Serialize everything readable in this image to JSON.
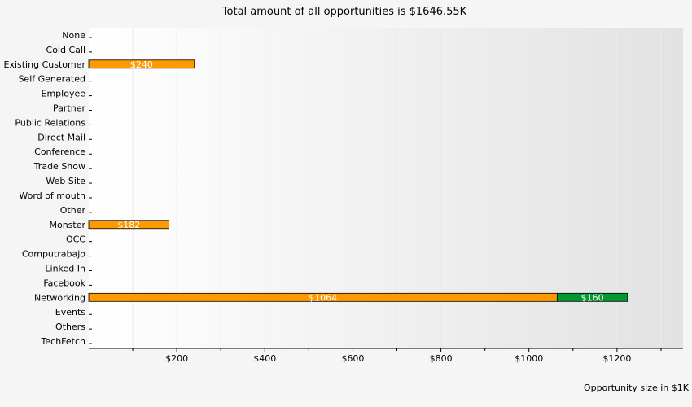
{
  "chart_data": {
    "type": "bar",
    "orientation": "horizontal",
    "stacked": true,
    "title": "Total amount of all opportunities is $1646.55K",
    "xlabel": "Opportunity size in $1K",
    "ylabel": "",
    "categories": [
      "None",
      "Cold Call",
      "Existing Customer",
      "Self Generated",
      "Employee",
      "Partner",
      "Public Relations",
      "Direct Mail",
      "Conference",
      "Trade Show",
      "Web Site",
      "Word of mouth",
      "Other",
      "Monster",
      "OCC",
      "Computrabajo",
      "Linked In",
      "Facebook",
      "Networking",
      "Events",
      "Others",
      "TechFetch"
    ],
    "series": [
      {
        "color": "#ff9900",
        "values": [
          0,
          0,
          240,
          0,
          0,
          0,
          0,
          0,
          0,
          0,
          0,
          0,
          0,
          182,
          0,
          0,
          0,
          0,
          1064,
          0,
          0,
          0
        ],
        "labels": [
          "",
          "",
          "$240",
          "",
          "",
          "",
          "",
          "",
          "",
          "",
          "",
          "",
          "",
          "$182",
          "",
          "",
          "",
          "",
          "$1064",
          "",
          "",
          ""
        ]
      },
      {
        "color": "#009933",
        "values": [
          0,
          0,
          0,
          0,
          0,
          0,
          0,
          0,
          0,
          0,
          0,
          0,
          0,
          0,
          0,
          0,
          0,
          0,
          160,
          0,
          0,
          0
        ],
        "labels": [
          "",
          "",
          "",
          "",
          "",
          "",
          "",
          "",
          "",
          "",
          "",
          "",
          "",
          "",
          "",
          "",
          "",
          "",
          "$160",
          "",
          "",
          ""
        ]
      }
    ],
    "xlim": [
      0,
      1350
    ],
    "x_ticks": [
      200,
      400,
      600,
      800,
      1000,
      1200
    ],
    "x_tick_labels": [
      "$200",
      "$400",
      "$600",
      "$800",
      "$1000",
      "$1200"
    ],
    "grid": true
  }
}
